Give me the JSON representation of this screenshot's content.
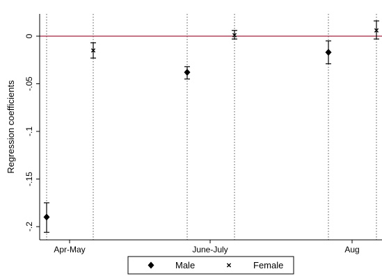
{
  "chart_data": {
    "type": "scatter",
    "title": "",
    "xlabel": "",
    "ylabel": "Regression coefficients",
    "categories": [
      "Apr-May",
      "June-July",
      "Aug"
    ],
    "ylim": [
      -0.2,
      0
    ],
    "yticks": [
      0,
      -0.05,
      -0.1,
      -0.15,
      -0.2
    ],
    "ytick_labels": [
      "0",
      "-.05",
      "-.1",
      "-.15",
      "-.2"
    ],
    "reference_line": {
      "y": 0,
      "color": "#a0203a"
    },
    "grid": "vertical dotted lines at each estimate",
    "legend": {
      "placement": "bottom-center",
      "entries": [
        "Male",
        "Female"
      ]
    },
    "series": [
      {
        "name": "Male",
        "marker": "diamond",
        "color": "#000000",
        "points": [
          {
            "category": "Apr-May",
            "y": -0.19,
            "ci": [
              -0.206,
              -0.175
            ]
          },
          {
            "category": "June-July",
            "y": -0.038,
            "ci": [
              -0.045,
              -0.032
            ]
          },
          {
            "category": "Aug",
            "y": -0.017,
            "ci": [
              -0.029,
              -0.005
            ]
          }
        ]
      },
      {
        "name": "Female",
        "marker": "x",
        "color": "#000000",
        "points": [
          {
            "category": "Apr-May",
            "y": -0.015,
            "ci": [
              -0.023,
              -0.007
            ]
          },
          {
            "category": "June-July",
            "y": 0.001,
            "ci": [
              -0.003,
              0.006
            ]
          },
          {
            "category": "Aug",
            "y": 0.006,
            "ci": [
              -0.003,
              0.016
            ]
          }
        ]
      }
    ]
  }
}
